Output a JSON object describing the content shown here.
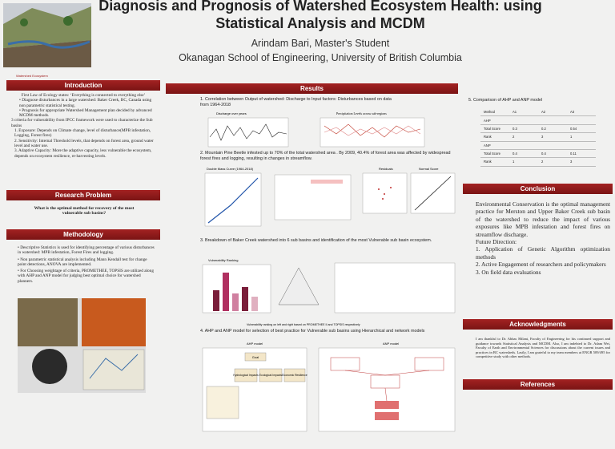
{
  "header": {
    "title": "Diagnosis and Prognosis of Watershed Ecosystem Health: using Statistical Analysis and MCDM",
    "author": "Arindam Bari, Master's Student",
    "affiliation": "Okanagan School of Engineering, University of British Columbia",
    "figure_caption": "Watershed Ecosystem"
  },
  "introduction": {
    "heading": "Introduction",
    "paragraphs": [
      "First Law of Ecology states: ‘Everything is connected to everything else’",
      "Diagnose disturbances in a large watershed: Baker Creek, BC, Canada using non parametric statistical testing.",
      "Prognosis for appropriate Watershed Management plan decided by advanced MCDM methods.",
      "3 criteria for vulnerability from IPCC framework were used to characterize the Sub basins",
      "1. Exposure: Depends on Climate change, level of disturbance(MPB infestation, Logging, Forest fires)",
      "2. Sensitivity: Internal Threshold levels, that depends on forest area, ground water level and water use.",
      "3. Adaptive Capacity: More the adaptive capacity, less vulnerable the ecosystem, depends on ecosystem resilience, re-harvesting levels."
    ]
  },
  "research_problem": {
    "heading": "Research Problem",
    "question": "What is the optimal method for recovery of the most vulnerable sub basins?"
  },
  "methodology": {
    "heading": "Methodology",
    "bullets": [
      "Descriptive Statistics is used for identifying percentage of various disturbances in watershed: MPB infestation, Forest Fires and logging.",
      "Non parametric statistical analysis including Mann Kendall test for change point detections, ANOVA are implemented.",
      "For Choosing weightage of criteria, PROMETHEE, TOPSIS are utilized along with AHP and ANP model for judging best optimal choice for watershed planners."
    ]
  },
  "results": {
    "heading": "Results",
    "sections": [
      "1. Correlation between Output of watershed: Discharge to Input factors: Disturbances based on data from 1964-2018",
      "2. Mountain Pine Beetle infested up to 70% of the total watershed area . By 2009, 40.4% of forest area was affected by widespread forest fires and logging, resulting in changes in streamflow.",
      "3. Breakdown of Baker Creek watershed into 6 sub basins and identification of the most Vulnerable sub basin ecosystem.",
      "4. AHP and ANP model for selection of best practice for Vulnerable sub basins using Hierarchical and network models"
    ],
    "captions": {
      "discharge": "Discharge over years",
      "precipitation": "Precipitation Levels across sub-regions",
      "double_mass": "Double Mass Curve (1964-2018)",
      "residuals": "Residuals",
      "normal": "Normal Score",
      "vulnerability": "Vulnerability Ranking",
      "ranking_note": "Vulnerability ranking on left and right based on PROMETHEE II and TOPSIS respectively",
      "ahp_model": "AHP model",
      "anp_model": "ANP model",
      "goal": "Goal",
      "hydro": "Hydrological Impacts",
      "eco": "Ecological Impacts",
      "econ": "Economic Resilience"
    }
  },
  "comparison": {
    "title": "5. Comparison of AHP and ANP model",
    "columns": [
      "Method",
      "A1",
      "A2",
      "A3"
    ],
    "ahp_label": "AHP",
    "ahp_rows": [
      [
        "Total Score",
        "0.3",
        "0.2",
        "0.54"
      ],
      [
        "Rank",
        "2",
        "3",
        "1"
      ]
    ],
    "anp_label": "ANP",
    "anp_rows": [
      [
        "Total Score",
        "0.4",
        "0.4",
        "0.11"
      ],
      [
        "Rank",
        "1",
        "2",
        "3"
      ]
    ]
  },
  "conclusion": {
    "heading": "Conclusion",
    "text": "Environmental Conservation is the optimal management practice for Merston and Upper Baker Creek sub basin of the watershed to reduce the impact of various exposures like MPB infestation and forest fires on streamflow discharge.",
    "future_heading": "Future Direction:",
    "items": [
      "1. Application of Genetic Algorithm optimization methods",
      "2. Active Engagement of researchers and policymakers",
      "3. On field data evaluations"
    ]
  },
  "acknowledgments": {
    "heading": "Acknowledgments",
    "text": "I am thankful to Dr. Abbas Milani, Faculty of Engineering for his continued support and guidance towards Statistical Analysis and MCDM. Also, I am indebted to Dr. Adam Wei, Faculty of Earth and Environmental Sciences for discussions about the current issues and practices in BC watersheds. Lastly, I am grateful to my team members at ENGR 509/495 for competitive study with other methods."
  },
  "references": {
    "heading": "References"
  }
}
